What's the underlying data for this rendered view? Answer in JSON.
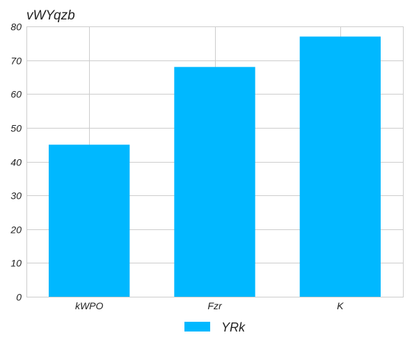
{
  "chart_data": {
    "type": "bar",
    "title": "vWYqzb",
    "categories": [
      "kWPO",
      "Fzr",
      "K"
    ],
    "series": [
      {
        "name": "YRk",
        "values": [
          45,
          68,
          77
        ],
        "color": "#00b8ff"
      }
    ],
    "xlabel": "",
    "ylabel": "",
    "ylim": [
      0,
      80
    ],
    "yticks": [
      0,
      10,
      20,
      30,
      40,
      50,
      60,
      70,
      80
    ],
    "grid": true,
    "legend": "bottom-center"
  }
}
